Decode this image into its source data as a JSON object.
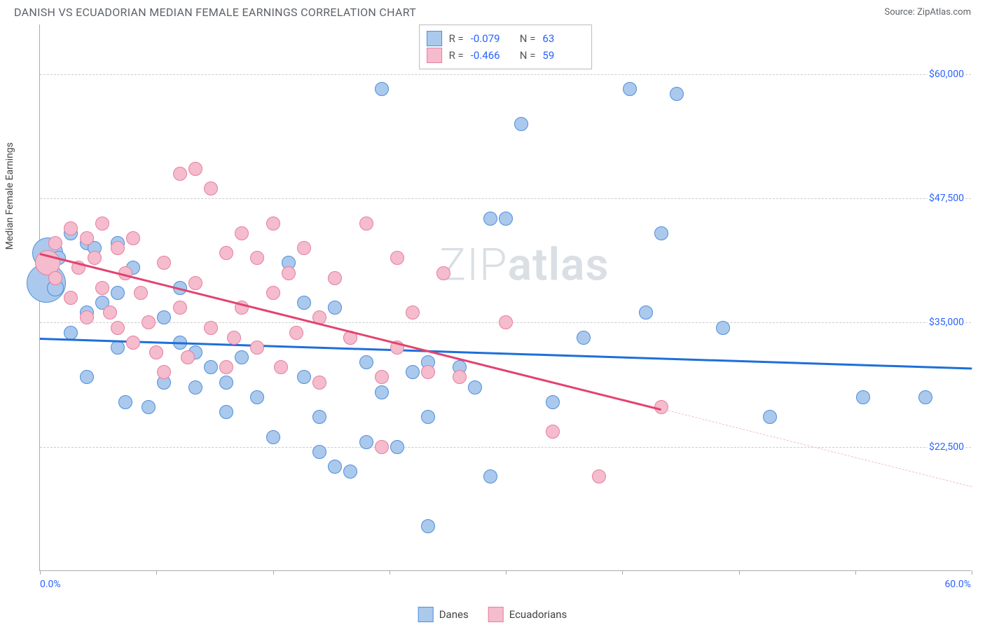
{
  "header": {
    "title": "DANISH VS ECUADORIAN MEDIAN FEMALE EARNINGS CORRELATION CHART",
    "source": "Source: ZipAtlas.com"
  },
  "watermark": {
    "light": "ZIP",
    "bold": "atlas"
  },
  "chart": {
    "type": "scatter",
    "ylabel": "Median Female Earnings",
    "xlim": [
      0,
      60
    ],
    "ylim": [
      10000,
      65000
    ],
    "x_range_labels": {
      "min": "0.0%",
      "max": "60.0%"
    },
    "ytick_values": [
      22500,
      35000,
      47500,
      60000
    ],
    "ytick_labels": [
      "$22,500",
      "$35,000",
      "$47,500",
      "$60,000"
    ],
    "xtick_positions": [
      0,
      7.5,
      15,
      22.5,
      30,
      37.5,
      45,
      52.5,
      60
    ],
    "grid_color": "#cccccc",
    "axis_color": "#aaaaaa",
    "background_color": "#ffffff",
    "marker_radius": 9,
    "marker_border_width": 1.5,
    "marker_fill_opacity": 0.28,
    "series": [
      {
        "key": "danes",
        "label": "Danes",
        "color_border": "#4f8edb",
        "color_fill": "#aac9ec",
        "trend_color": "#1e6fd9",
        "trend": {
          "x1": 0,
          "y1": 33500,
          "x2": 60,
          "y2": 30500,
          "solid_until_x": 60
        },
        "stats": {
          "R": "-0.079",
          "N": "63"
        },
        "points": [
          [
            0.5,
            42000,
            22
          ],
          [
            0.4,
            39000,
            28
          ],
          [
            1,
            38500,
            12
          ],
          [
            1.2,
            41500,
            10
          ],
          [
            2,
            44000,
            10
          ],
          [
            2,
            34000,
            10
          ],
          [
            3,
            43000,
            10
          ],
          [
            3.5,
            42500,
            10
          ],
          [
            3,
            36000,
            10
          ],
          [
            3,
            29500,
            10
          ],
          [
            4,
            37000,
            10
          ],
          [
            5,
            43000,
            10
          ],
          [
            5,
            38000,
            10
          ],
          [
            5,
            32500,
            10
          ],
          [
            5.5,
            27000,
            10
          ],
          [
            6,
            40500,
            10
          ],
          [
            7,
            26500,
            10
          ],
          [
            8,
            35500,
            10
          ],
          [
            8,
            29000,
            10
          ],
          [
            9,
            38500,
            10
          ],
          [
            9,
            33000,
            10
          ],
          [
            10,
            32000,
            10
          ],
          [
            10,
            28500,
            10
          ],
          [
            11,
            30500,
            10
          ],
          [
            12,
            29000,
            10
          ],
          [
            12,
            26000,
            10
          ],
          [
            13,
            31500,
            10
          ],
          [
            14,
            27500,
            10
          ],
          [
            15,
            23500,
            10
          ],
          [
            16,
            41000,
            10
          ],
          [
            17,
            37000,
            10
          ],
          [
            17,
            29500,
            10
          ],
          [
            18,
            22000,
            10
          ],
          [
            18,
            25500,
            10
          ],
          [
            19,
            36500,
            10
          ],
          [
            19,
            20500,
            10
          ],
          [
            20,
            33500,
            10
          ],
          [
            20,
            20000,
            10
          ],
          [
            21,
            31000,
            10
          ],
          [
            21,
            23000,
            10
          ],
          [
            22,
            58500,
            10
          ],
          [
            22,
            28000,
            10
          ],
          [
            23,
            22500,
            10
          ],
          [
            24,
            30000,
            10
          ],
          [
            25,
            31000,
            10
          ],
          [
            25,
            25500,
            10
          ],
          [
            25,
            14500,
            10
          ],
          [
            27,
            30500,
            10
          ],
          [
            28,
            28500,
            10
          ],
          [
            29,
            45500,
            10
          ],
          [
            29,
            19500,
            10
          ],
          [
            30,
            45500,
            10
          ],
          [
            31,
            55000,
            10
          ],
          [
            33,
            27000,
            10
          ],
          [
            35,
            33500,
            10
          ],
          [
            38,
            58500,
            10
          ],
          [
            39,
            36000,
            10
          ],
          [
            40,
            44000,
            10
          ],
          [
            41,
            58000,
            10
          ],
          [
            44,
            34500,
            10
          ],
          [
            47,
            25500,
            10
          ],
          [
            53,
            27500,
            10
          ],
          [
            57,
            27500,
            10
          ]
        ]
      },
      {
        "key": "ecuadorians",
        "label": "Ecuadorians",
        "color_border": "#e87ea0",
        "color_fill": "#f4bccd",
        "trend_color": "#e3426f",
        "trend": {
          "x1": 0,
          "y1": 42000,
          "x2": 60,
          "y2": 18500,
          "solid_until_x": 40
        },
        "stats": {
          "R": "-0.466",
          "N": "59"
        },
        "points": [
          [
            0.5,
            41000,
            18
          ],
          [
            1,
            43000,
            10
          ],
          [
            1,
            39500,
            10
          ],
          [
            2,
            44500,
            10
          ],
          [
            2,
            37500,
            10
          ],
          [
            2.5,
            40500,
            10
          ],
          [
            3,
            43500,
            10
          ],
          [
            3,
            35500,
            10
          ],
          [
            3.5,
            41500,
            10
          ],
          [
            4,
            45000,
            10
          ],
          [
            4,
            38500,
            10
          ],
          [
            4.5,
            36000,
            10
          ],
          [
            5,
            42500,
            10
          ],
          [
            5,
            34500,
            10
          ],
          [
            5.5,
            40000,
            10
          ],
          [
            6,
            43500,
            10
          ],
          [
            6,
            33000,
            10
          ],
          [
            6.5,
            38000,
            10
          ],
          [
            7,
            35000,
            10
          ],
          [
            7.5,
            32000,
            10
          ],
          [
            8,
            41000,
            10
          ],
          [
            8,
            30000,
            10
          ],
          [
            9,
            50000,
            10
          ],
          [
            9,
            36500,
            10
          ],
          [
            9.5,
            31500,
            10
          ],
          [
            10,
            50500,
            10
          ],
          [
            10,
            39000,
            10
          ],
          [
            11,
            48500,
            10
          ],
          [
            11,
            34500,
            10
          ],
          [
            12,
            42000,
            10
          ],
          [
            12,
            30500,
            10
          ],
          [
            12.5,
            33500,
            10
          ],
          [
            13,
            44000,
            10
          ],
          [
            13,
            36500,
            10
          ],
          [
            14,
            41500,
            10
          ],
          [
            14,
            32500,
            10
          ],
          [
            15,
            45000,
            10
          ],
          [
            15,
            38000,
            10
          ],
          [
            15.5,
            30500,
            10
          ],
          [
            16,
            40000,
            10
          ],
          [
            16.5,
            34000,
            10
          ],
          [
            17,
            42500,
            10
          ],
          [
            18,
            35500,
            10
          ],
          [
            18,
            29000,
            10
          ],
          [
            19,
            39500,
            10
          ],
          [
            20,
            33500,
            10
          ],
          [
            21,
            45000,
            10
          ],
          [
            22,
            29500,
            10
          ],
          [
            22,
            22500,
            10
          ],
          [
            23,
            41500,
            10
          ],
          [
            23,
            32500,
            10
          ],
          [
            24,
            36000,
            10
          ],
          [
            25,
            30000,
            10
          ],
          [
            26,
            40000,
            10
          ],
          [
            27,
            29500,
            10
          ],
          [
            30,
            35000,
            10
          ],
          [
            33,
            24000,
            10
          ],
          [
            36,
            19500,
            10
          ],
          [
            40,
            26500,
            10
          ]
        ]
      }
    ],
    "legend_swatch_size": 22,
    "stats_box": {
      "R_label": "R =",
      "N_label": "N ="
    }
  }
}
